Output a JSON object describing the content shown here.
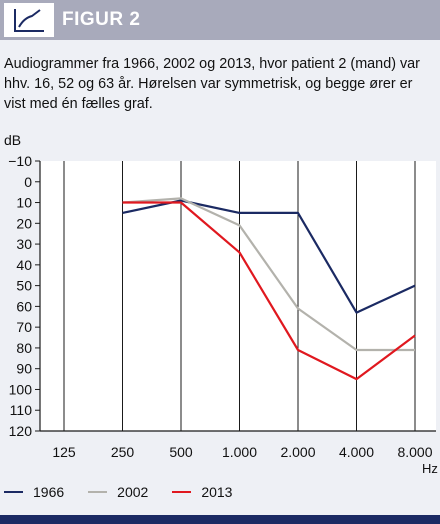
{
  "header": {
    "title": "FIGUR 2",
    "icon": "line-chart-icon"
  },
  "caption": "Audiogrammer fra 1966, 2002 og 2013, hvor patient 2 (mand) var hhv. 16, 52 og 63 år. Hørelsen var symmetrisk, og begge ører er vist med én fælles graf.",
  "chart_data": {
    "type": "line",
    "ylabel": "dB",
    "xlabel": "Hz",
    "ylim": [
      -10,
      120
    ],
    "y_inverted": true,
    "y_ticks": [
      -10,
      0,
      10,
      20,
      30,
      40,
      50,
      60,
      70,
      80,
      90,
      100,
      110,
      120
    ],
    "y_tick_labels": [
      "−10",
      "0",
      "10",
      "20",
      "30",
      "40",
      "50",
      "60",
      "70",
      "80",
      "90",
      "100",
      "110",
      "120"
    ],
    "x_ticks": [
      125,
      250,
      500,
      1000,
      2000,
      4000,
      8000
    ],
    "x_tick_labels": [
      "125",
      "250",
      "500",
      "1.000",
      "2.000",
      "4.000",
      "8.000"
    ],
    "x_scale": "log",
    "grid": "vertical",
    "legend": "bottom-left",
    "series": [
      {
        "name": "1966",
        "color": "#1b2a63",
        "points": [
          [
            250,
            15
          ],
          [
            500,
            9
          ],
          [
            1000,
            15
          ],
          [
            2000,
            15
          ],
          [
            4000,
            63
          ],
          [
            8000,
            50
          ]
        ]
      },
      {
        "name": "2002",
        "color": "#b3b2ac",
        "points": [
          [
            250,
            10
          ],
          [
            500,
            8
          ],
          [
            1000,
            21
          ],
          [
            2000,
            61
          ],
          [
            4000,
            81
          ],
          [
            8000,
            81
          ]
        ]
      },
      {
        "name": "2013",
        "color": "#e0181f",
        "points": [
          [
            250,
            10
          ],
          [
            500,
            10
          ],
          [
            1000,
            34
          ],
          [
            2000,
            81
          ],
          [
            4000,
            95
          ],
          [
            8000,
            74
          ]
        ]
      }
    ]
  },
  "colors": {
    "header_bg": "#a8aabb",
    "page_bg": "#eef0f5",
    "accent_navy": "#1b2a63"
  }
}
